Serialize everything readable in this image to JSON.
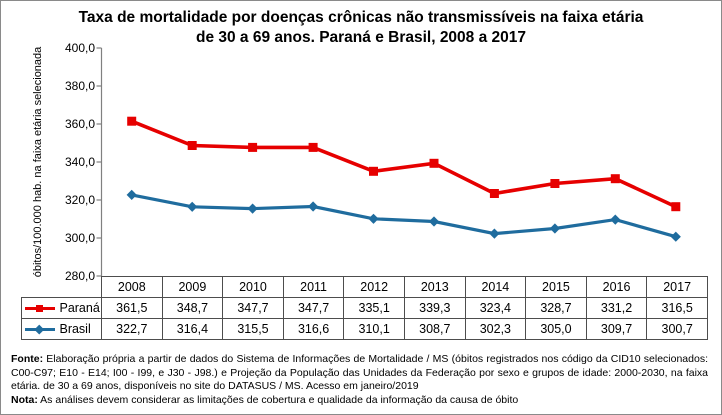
{
  "figure": {
    "title": "Taxa de mortalidade por doenças crônicas não transmissíveis na faixa etária de 30 a 69 anos. Paraná e Brasil, 2008 a 2017"
  },
  "y_axis": {
    "label": "óbitos/100.000 hab. na faixa etária selecionada",
    "ticks": [
      "400,0",
      "380,0",
      "360,0",
      "340,0",
      "320,0",
      "300,0",
      "280,0"
    ]
  },
  "chart_data": {
    "type": "line",
    "title": "Taxa de mortalidade por doenças crônicas não transmissíveis na faixa etária de 30 a 69 anos. Paraná e Brasil, 2008 a 2017",
    "categories": [
      2008,
      2009,
      2010,
      2011,
      2012,
      2013,
      2014,
      2015,
      2016,
      2017
    ],
    "series": [
      {
        "name": "Paraná",
        "color": "#e60000",
        "marker": "square",
        "values": [
          361.5,
          348.7,
          347.7,
          347.7,
          335.1,
          339.3,
          323.4,
          328.7,
          331.2,
          316.5
        ]
      },
      {
        "name": "Brasil",
        "color": "#1f6c9e",
        "marker": "diamond",
        "values": [
          322.7,
          316.4,
          315.5,
          316.6,
          310.1,
          308.7,
          302.3,
          305.0,
          309.7,
          300.7
        ]
      }
    ],
    "xlabel": "",
    "ylabel": "óbitos/100.000 hab. na faixa etária selecionada",
    "ylim": [
      280,
      400
    ],
    "ytick_step": 20,
    "grid": false,
    "legend_position": "data-table-left",
    "axis_color": "#808080"
  },
  "table": {
    "years": [
      "2008",
      "2009",
      "2010",
      "2011",
      "2012",
      "2013",
      "2014",
      "2015",
      "2016",
      "2017"
    ],
    "rows": [
      {
        "label": "Paraná",
        "values": [
          "361,5",
          "348,7",
          "347,7",
          "347,7",
          "335,1",
          "339,3",
          "323,4",
          "328,7",
          "331,2",
          "316,5"
        ]
      },
      {
        "label": "Brasil",
        "values": [
          "322,7",
          "316,4",
          "315,5",
          "316,6",
          "310,1",
          "308,7",
          "302,3",
          "305,0",
          "309,7",
          "300,7"
        ]
      }
    ]
  },
  "footnote": {
    "fonte_label": "Fonte:",
    "fonte_text": " Elaboração própria a partir de dados do Sistema de Informações de Mortalidade / MS (óbitos registrados nos código da CID10 selecionados: C00-C97; E10 - E14; I00 - I99, e J30 - J98.) e Projeção da População das Unidades da Federação por sexo e grupos de idade: 2000-2030, na faixa etária. de 30 a 69 anos, disponíveis no site do DATASUS / MS.  Acesso em janeiro/2019",
    "nota_label": "Nota:",
    "nota_text": " As análises devem considerar as limitações de cobertura e qualidade da informação da causa de óbito"
  }
}
